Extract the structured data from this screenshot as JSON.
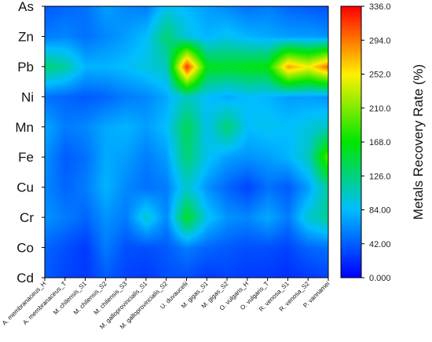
{
  "chart_data": {
    "type": "heatmap",
    "title": "",
    "xlabel": "",
    "ylabel": "",
    "x_categories": [
      "A. membranaceus_H",
      "A. membranaceus_T",
      "M. chilensis_S1",
      "M. chilensis_S2",
      "M. chilensis_S3",
      "M. galloprovincialis_S1",
      "M. galloprovincialis_S2",
      "U. duvaucelii",
      "M. gigas_S1",
      "M. gigas_S2",
      "O. vulgaris_H",
      "O. vulgaris_T",
      "R. venosa_S1",
      "R. venosa_S2",
      "P. vannamei"
    ],
    "y_categories": [
      "As",
      "Zn",
      "Pb",
      "Ni",
      "Mn",
      "Fe",
      "Cu",
      "Cr",
      "Co",
      "Cd"
    ],
    "values": [
      [
        40,
        45,
        50,
        70,
        60,
        55,
        90,
        80,
        70,
        60,
        50,
        55,
        45,
        40,
        35
      ],
      [
        55,
        60,
        50,
        60,
        70,
        85,
        130,
        95,
        80,
        90,
        80,
        75,
        70,
        70,
        65
      ],
      [
        130,
        115,
        80,
        80,
        85,
        95,
        105,
        320,
        160,
        155,
        160,
        165,
        280,
        250,
        300
      ],
      [
        50,
        45,
        40,
        45,
        55,
        60,
        75,
        105,
        85,
        75,
        85,
        80,
        70,
        70,
        65
      ],
      [
        75,
        55,
        60,
        75,
        80,
        70,
        85,
        140,
        90,
        130,
        85,
        90,
        85,
        95,
        105
      ],
      [
        65,
        40,
        50,
        75,
        70,
        55,
        70,
        130,
        90,
        70,
        65,
        70,
        80,
        105,
        200
      ],
      [
        60,
        45,
        55,
        80,
        60,
        50,
        55,
        100,
        65,
        45,
        30,
        50,
        40,
        70,
        120
      ],
      [
        65,
        55,
        45,
        65,
        55,
        100,
        60,
        155,
        90,
        65,
        60,
        75,
        55,
        100,
        120
      ],
      [
        45,
        35,
        25,
        55,
        35,
        35,
        40,
        55,
        45,
        40,
        35,
        35,
        30,
        45,
        50
      ],
      [
        40,
        30,
        25,
        40,
        30,
        25,
        35,
        35,
        25,
        30,
        25,
        25,
        20,
        25,
        30
      ]
    ],
    "colorbar": {
      "label": "Metals Recovery Rate (%)",
      "range": [
        0,
        336
      ],
      "tick_values": [
        0,
        42,
        84,
        126,
        168,
        210,
        252,
        294,
        336
      ],
      "tick_labels": [
        "0.000",
        "42.00",
        "84.00",
        "126.0",
        "168.0",
        "210.0",
        "252.0",
        "294.0",
        "336.0"
      ],
      "colormap": "rainbow (blue→cyan→green→yellow→red)"
    },
    "grid": false,
    "interpolation": "smooth contour"
  }
}
